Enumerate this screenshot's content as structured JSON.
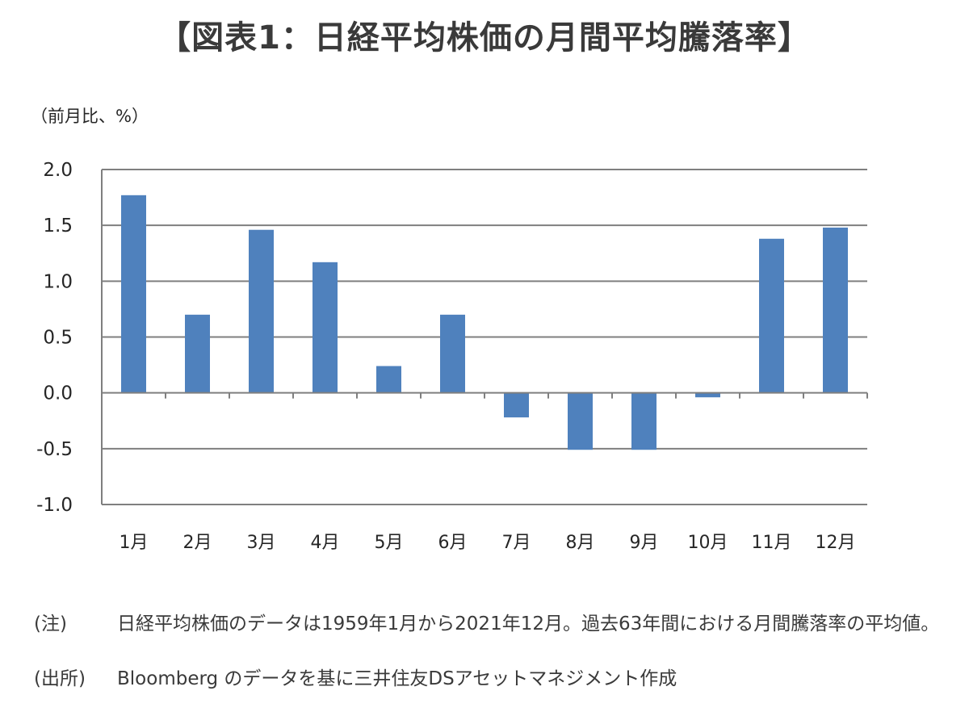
{
  "title": "【図表1：日経平均株価の月間平均騰落率】",
  "unit_label": "（前月比、%）",
  "chart_data": {
    "type": "bar",
    "title": "【図表1：日経平均株価の月間平均騰落率】",
    "ylabel": "（前月比、%）",
    "xlabel": "",
    "categories": [
      "1月",
      "2月",
      "3月",
      "4月",
      "5月",
      "6月",
      "7月",
      "8月",
      "9月",
      "10月",
      "11月",
      "12月"
    ],
    "values": [
      1.77,
      0.7,
      1.46,
      1.17,
      0.24,
      0.7,
      -0.22,
      -0.51,
      -0.51,
      -0.04,
      1.38,
      1.48
    ],
    "ylim": [
      -1.0,
      2.0
    ],
    "yticks": [
      "2.0",
      "1.5",
      "1.0",
      "0.5",
      "0.0",
      "-0.5",
      "-1.0"
    ],
    "ytick_values": [
      2.0,
      1.5,
      1.0,
      0.5,
      0.0,
      -0.5,
      -1.0
    ],
    "grid": true,
    "bar_color": "#4f81bd",
    "grid_color": "#7f7f7f"
  },
  "notes": [
    {
      "tag": "(注)",
      "text": "日経平均株価のデータは1959年1月から2021年12月。過去63年間における月間騰落率の平均値。"
    },
    {
      "tag": "(出所)",
      "text": "Bloomberg のデータを基に三井住友DSアセットマネジメント作成"
    }
  ]
}
